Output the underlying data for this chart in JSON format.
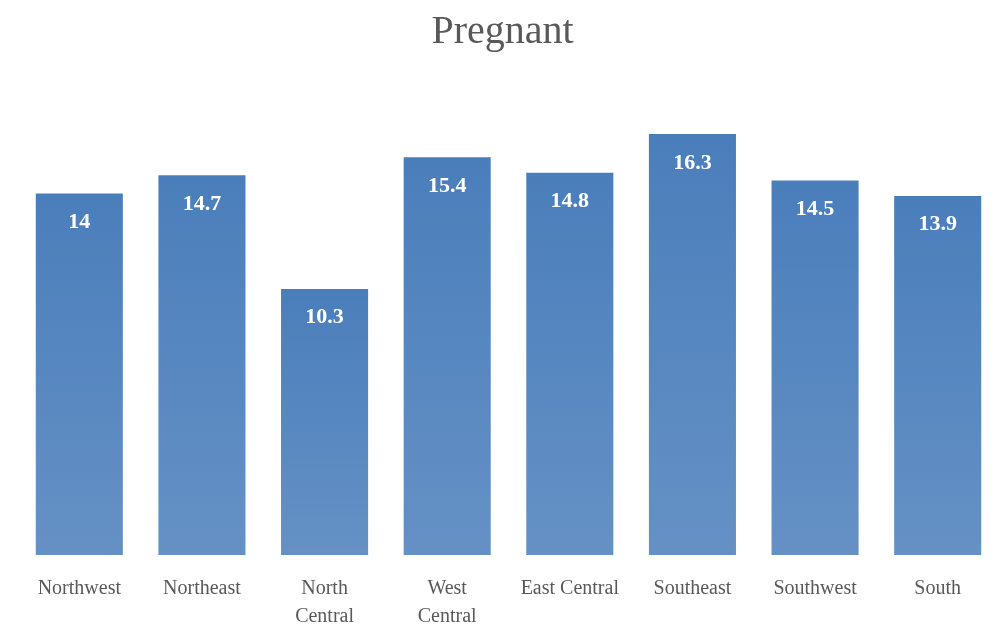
{
  "chart_data": {
    "type": "bar",
    "title": "Pregnant",
    "categories": [
      "Northwest",
      "Northeast",
      "North\nCentral",
      "West\nCentral",
      "East Central",
      "Southeast",
      "Southwest",
      "South"
    ],
    "values": [
      14,
      14.7,
      10.3,
      15.4,
      14.8,
      16.3,
      14.5,
      13.9
    ],
    "color": "#4a7ebb",
    "data_labels": true
  }
}
